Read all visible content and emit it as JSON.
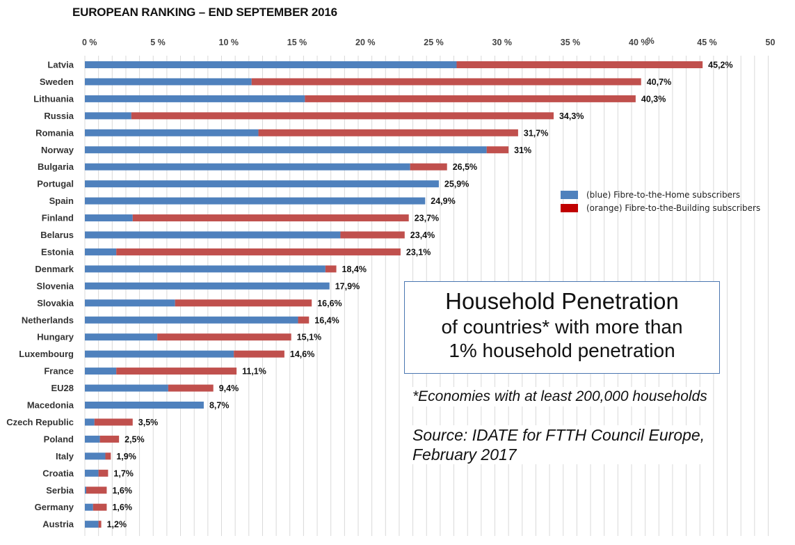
{
  "title": "EUROPEAN RANKING – END SEPTEMBER 2016",
  "legend": {
    "ftth": "(blue) Fibre-to-the-Home subscribers",
    "fttb": "(orange) Fibre-to-the-Building subscribers"
  },
  "colors": {
    "ftth": "#4f81bd",
    "fttb": "#c0504d",
    "fttb_legend": "#c00000",
    "grid": "#d9d9d9"
  },
  "annotation": {
    "title": "Household Penetration",
    "line1": "of countries* with more than",
    "line2": "1% household penetration"
  },
  "footnote": "*Economies with at least 200,000 households",
  "source_line1": "Source: IDATE for FTTH Council Europe,",
  "source_line2": "February 2017",
  "chart_data": {
    "type": "bar",
    "orientation": "horizontal",
    "stacked": true,
    "title": "EUROPEAN RANKING – END SEPTEMBER 2016",
    "xlim": [
      0,
      50
    ],
    "xticks": [
      "0 %",
      "5 %",
      "10 %",
      "15 %",
      "20 %",
      "25 %",
      "30 %",
      "35 %",
      "40 %",
      "45 %",
      "50"
    ],
    "x_unit_mark": "%",
    "grid": true,
    "legend_position": "right",
    "categories": [
      "Latvia",
      "Sweden",
      "Lithuania",
      "Russia",
      "Romania",
      "Norway",
      "Bulgaria",
      "Portugal",
      "Spain",
      "Finland",
      "Belarus",
      "Estonia",
      "Denmark",
      "Slovenia",
      "Slovakia",
      "Netherlands",
      "Hungary",
      "Luxembourg",
      "France",
      "EU28",
      "Macedonia",
      "Czech Republic",
      "Poland",
      "Italy",
      "Croatia",
      "Serbia",
      "Germany",
      "Austria"
    ],
    "series": [
      {
        "name": "(blue) Fibre-to-the-Home subscribers",
        "values": [
          27.2,
          12.2,
          16.1,
          3.4,
          12.7,
          29.4,
          23.8,
          25.9,
          24.9,
          3.5,
          18.7,
          2.3,
          17.6,
          17.9,
          6.6,
          15.6,
          5.3,
          10.9,
          2.3,
          6.1,
          8.7,
          0.7,
          1.1,
          1.5,
          1.0,
          0.1,
          0.6,
          1.0
        ]
      },
      {
        "name": "(orange) Fibre-to-the-Building subscribers",
        "values": [
          18.0,
          28.5,
          24.2,
          30.9,
          19.0,
          1.6,
          2.7,
          0.0,
          0.0,
          20.2,
          4.7,
          20.8,
          0.8,
          0.0,
          10.0,
          0.8,
          9.8,
          3.7,
          8.8,
          3.3,
          0.0,
          2.8,
          1.4,
          0.4,
          0.7,
          1.5,
          1.0,
          0.2
        ]
      }
    ],
    "totals": [
      45.2,
      40.7,
      40.3,
      34.3,
      31.7,
      31,
      26.5,
      25.9,
      24.9,
      23.7,
      23.4,
      23.1,
      18.4,
      17.9,
      16.6,
      16.4,
      15.1,
      14.6,
      11.1,
      9.4,
      8.7,
      3.5,
      2.5,
      1.9,
      1.7,
      1.6,
      1.6,
      1.2
    ],
    "labels": [
      "45,2%",
      "40,7%",
      "40,3%",
      "34,3%",
      "31,7%",
      "31%",
      "26,5%",
      "25,9%",
      "24,9%",
      "23,7%",
      "23,4%",
      "23,1%",
      "18,4%",
      "17,9%",
      "16,6%",
      "16,4%",
      "15,1%",
      "14,6%",
      "11,1%",
      "9,4%",
      "8,7%",
      "3,5%",
      "2,5%",
      "1,9%",
      "1,7%",
      "1,6%",
      "1,6%",
      "1,2%"
    ]
  }
}
